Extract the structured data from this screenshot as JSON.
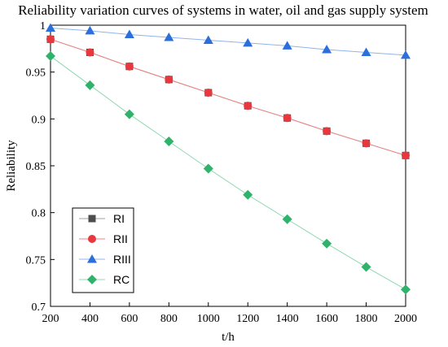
{
  "chart_data": {
    "type": "line",
    "title": "Reliability variation curves of systems in water, oil and gas supply system",
    "xlabel": "t/h",
    "ylabel": "Reliability",
    "xlim": [
      200,
      2000
    ],
    "ylim": [
      0.7,
      1.0
    ],
    "xticks": [
      200,
      400,
      600,
      800,
      1000,
      1200,
      1400,
      1600,
      1800,
      2000
    ],
    "yticks": [
      0.7,
      0.75,
      0.8,
      0.85,
      0.9,
      0.95,
      1
    ],
    "ytick_labels": [
      "0.7",
      "0.75",
      "0.8",
      "0.85",
      "0.9",
      "0.95",
      "1"
    ],
    "grid": false,
    "legend_position": "bottom-left",
    "x": [
      200,
      400,
      600,
      800,
      1000,
      1200,
      1400,
      1600,
      1800,
      2000
    ],
    "series": [
      {
        "name": "RI",
        "marker": "square",
        "color": "#4d4d4d",
        "line_color": "#a0a0a0",
        "values": [
          0.985,
          0.971,
          0.956,
          0.942,
          0.928,
          0.914,
          0.901,
          0.887,
          0.874,
          0.861
        ]
      },
      {
        "name": "RII",
        "marker": "circle",
        "color": "#e8383d",
        "line_color": "#f08080",
        "values": [
          0.985,
          0.971,
          0.956,
          0.942,
          0.928,
          0.914,
          0.901,
          0.887,
          0.874,
          0.861
        ]
      },
      {
        "name": "RIII",
        "marker": "triangle",
        "color": "#2a6fdb",
        "line_color": "#8fb4ec",
        "values": [
          0.997,
          0.994,
          0.99,
          0.987,
          0.984,
          0.981,
          0.978,
          0.974,
          0.971,
          0.968
        ]
      },
      {
        "name": "RC",
        "marker": "diamond",
        "color": "#2fb36b",
        "line_color": "#8fd8b0",
        "values": [
          0.967,
          0.936,
          0.905,
          0.876,
          0.847,
          0.819,
          0.793,
          0.767,
          0.742,
          0.718
        ]
      }
    ]
  }
}
